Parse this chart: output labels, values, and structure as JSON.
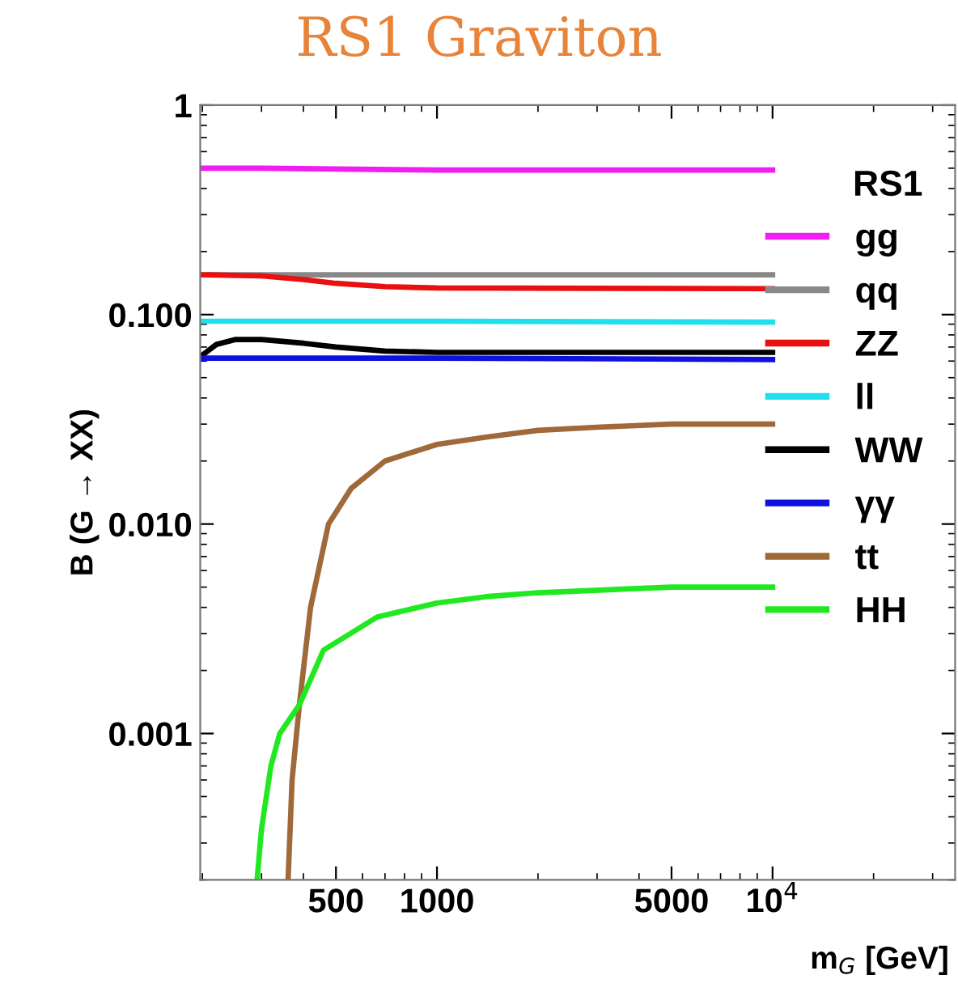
{
  "chart_data": {
    "type": "line",
    "title": "RS1 Graviton",
    "xlabel": "m$_{G}$ [GeV]",
    "ylabel": "B (G → XX)",
    "legend_title": "RS1",
    "log": "xy",
    "grid": false,
    "legend": "right",
    "line_style": "solid",
    "marker": "none",
    "xlim": [
      197,
      35000
    ],
    "ylim": [
      0.0002,
      1
    ],
    "xticks": [
      500,
      1000,
      5000,
      {
        "value": 10000,
        "label": "10$^{4}$"
      }
    ],
    "yticks": [
      {
        "value": 0.001,
        "label": "0.001"
      },
      {
        "value": 0.01,
        "label": "0.010"
      },
      {
        "value": 0.1,
        "label": "0.100"
      },
      1
    ],
    "series": [
      {
        "name": "gg",
        "color": "#f01ef0",
        "x": [
          197,
          300,
          1000,
          10000
        ],
        "values": [
          0.5,
          0.5,
          0.49,
          0.49
        ]
      },
      {
        "name": "qq",
        "color": "#888888",
        "x": [
          197,
          1000,
          10000
        ],
        "values": [
          0.155,
          0.155,
          0.155
        ]
      },
      {
        "name": "ZZ",
        "color": "#e81010",
        "x": [
          197,
          300,
          400,
          500,
          700,
          1000,
          10000
        ],
        "values": [
          0.155,
          0.153,
          0.147,
          0.141,
          0.136,
          0.134,
          0.133
        ]
      },
      {
        "name": "ll",
        "color": "#20e0f0",
        "x": [
          197,
          1000,
          10000
        ],
        "values": [
          0.093,
          0.093,
          0.092
        ]
      },
      {
        "name": "WW",
        "color": "#000000",
        "x": [
          197,
          220,
          250,
          300,
          400,
          500,
          700,
          1000,
          10000
        ],
        "values": [
          0.063,
          0.072,
          0.076,
          0.076,
          0.073,
          0.07,
          0.067,
          0.066,
          0.066
        ]
      },
      {
        "name": "γγ",
        "color": "#1010e0",
        "x": [
          197,
          1000,
          10000
        ],
        "values": [
          0.062,
          0.062,
          0.061
        ]
      },
      {
        "name": "tt",
        "color": "#a0693a",
        "x": [
          360,
          370,
          389,
          420,
          475,
          555,
          700,
          1000,
          1400,
          2000,
          3000,
          5000,
          10000
        ],
        "values": [
          0.0002,
          0.0006,
          0.00137,
          0.004,
          0.01,
          0.0148,
          0.02,
          0.024,
          0.026,
          0.028,
          0.029,
          0.03,
          0.03
        ]
      },
      {
        "name": "HH",
        "color": "#22e822",
        "x": [
          291,
          300,
          320,
          340,
          389,
          459,
          664,
          1000,
          1400,
          2000,
          5000,
          10000
        ],
        "values": [
          0.0002,
          0.00035,
          0.0007,
          0.001,
          0.00137,
          0.0025,
          0.0036,
          0.0042,
          0.0045,
          0.0047,
          0.005,
          0.005
        ]
      }
    ]
  }
}
